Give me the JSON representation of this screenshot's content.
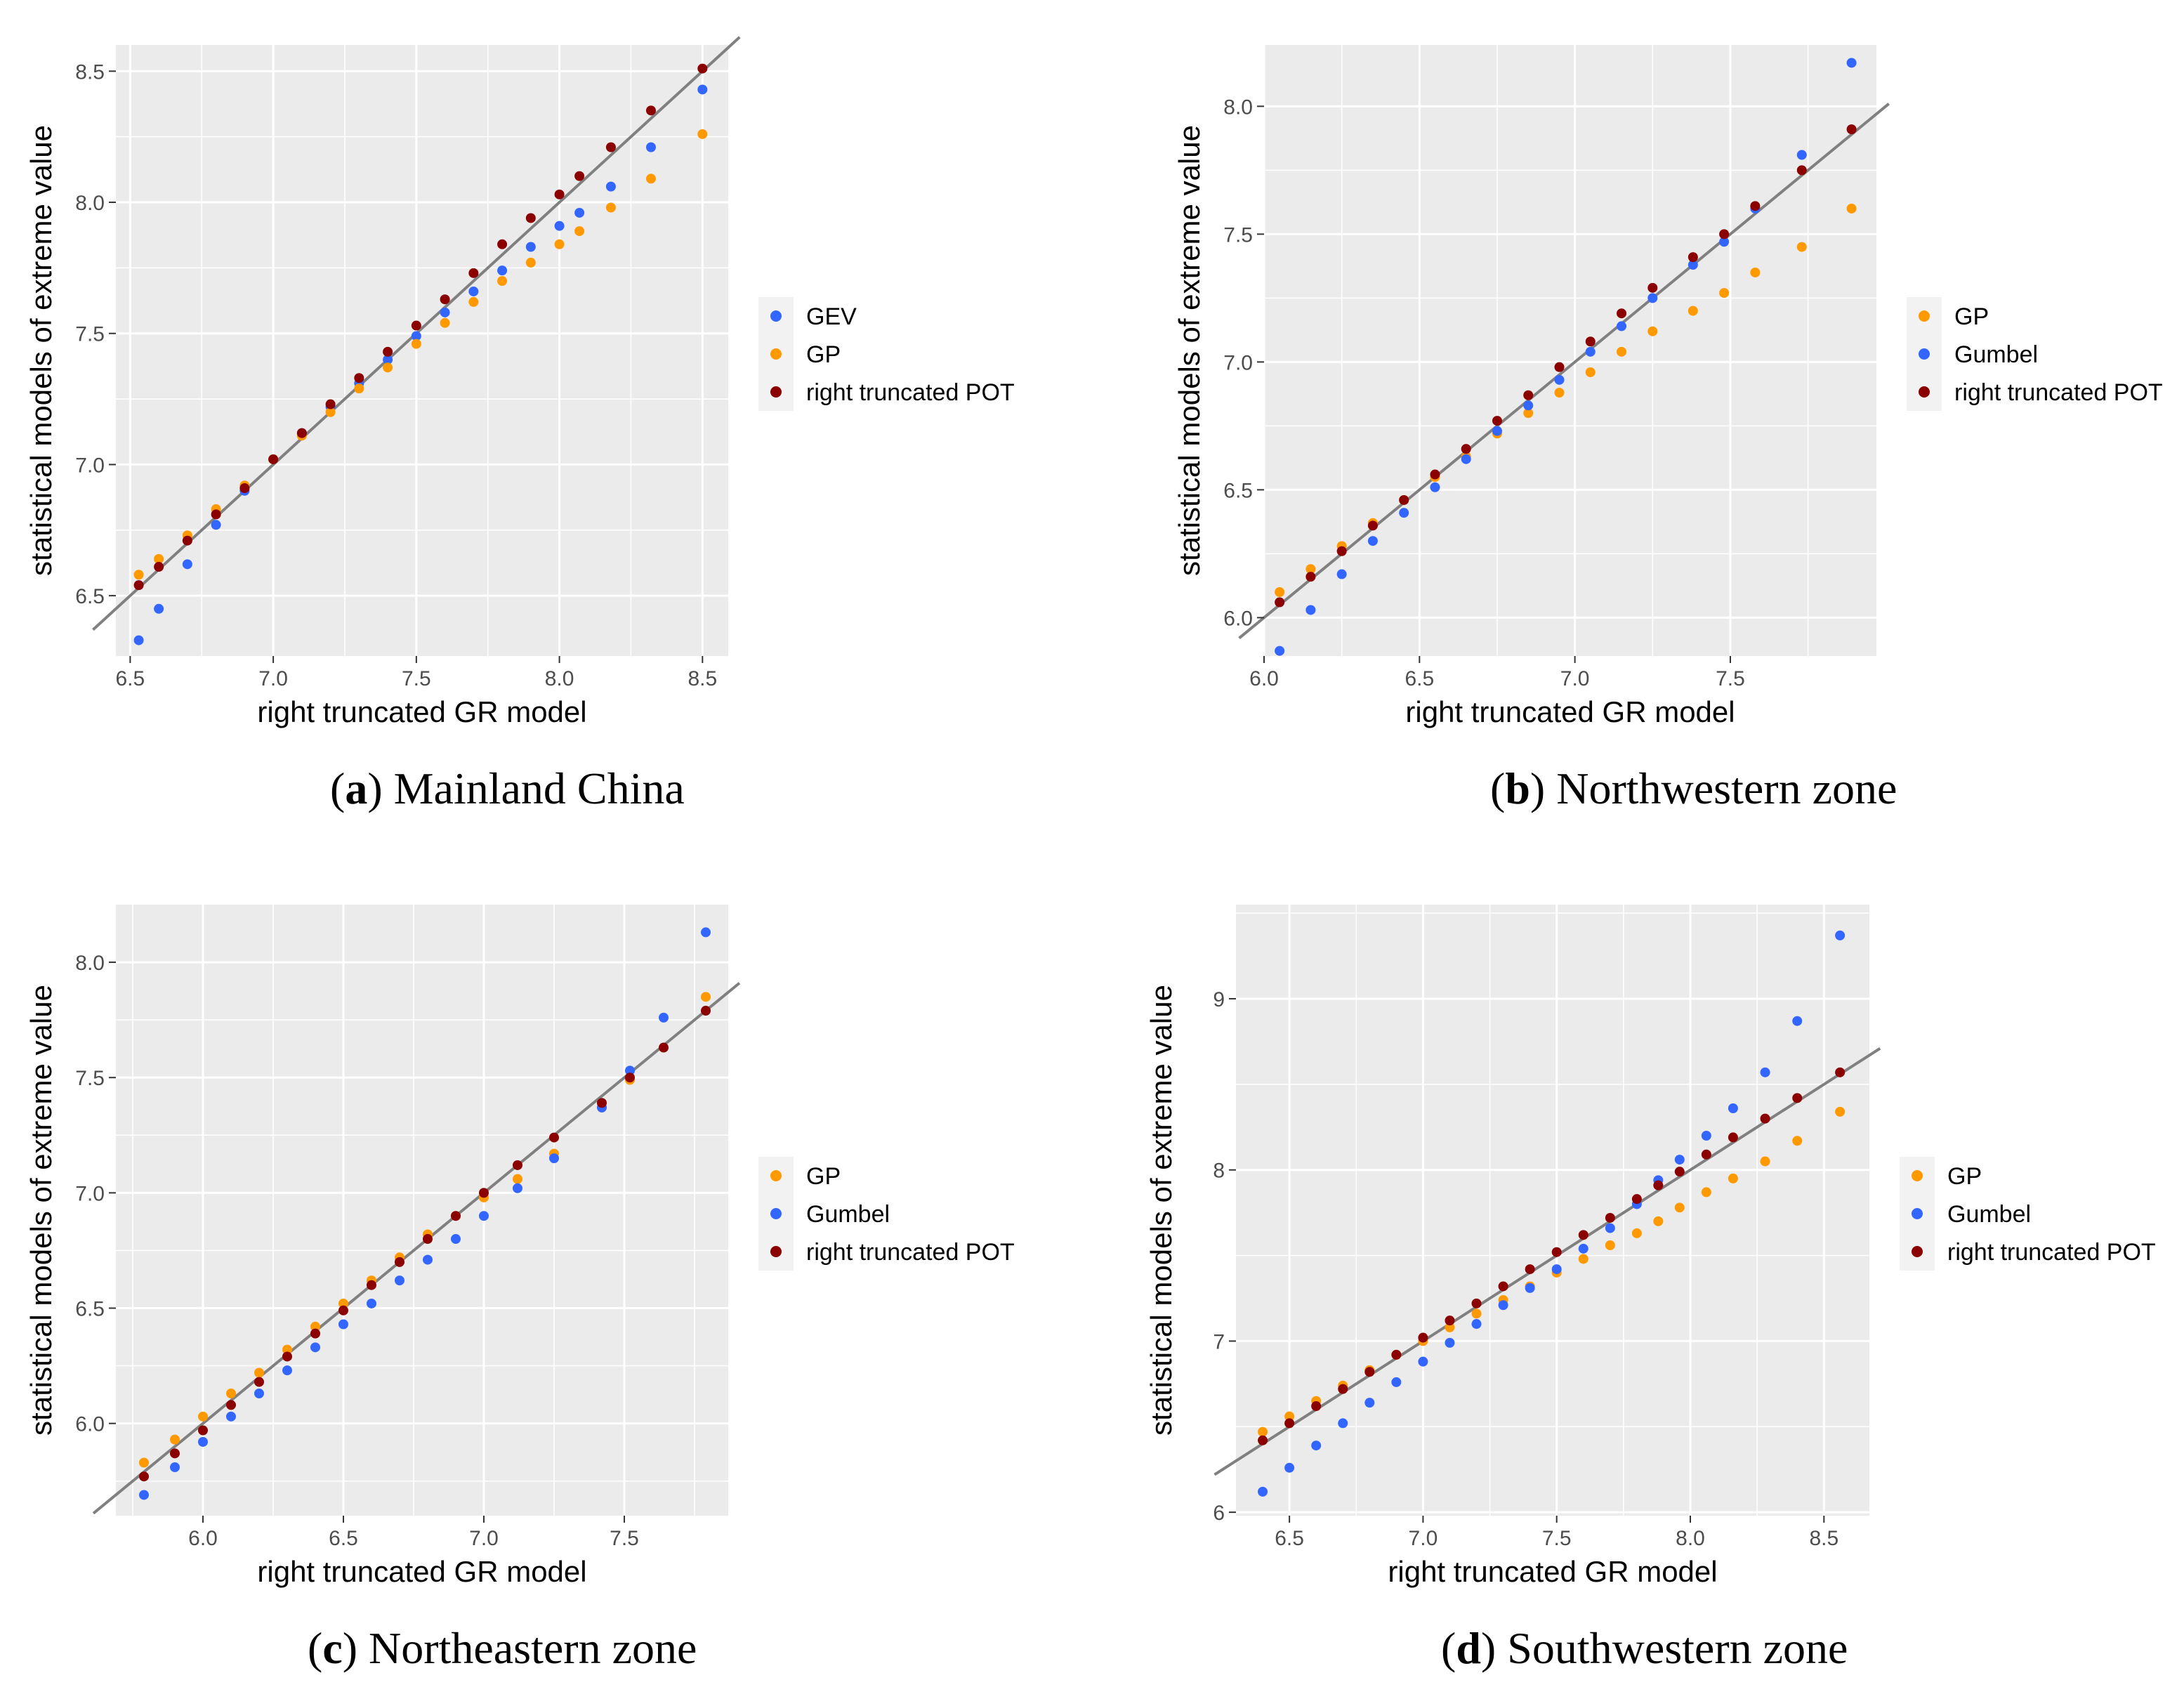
{
  "figure": {
    "colors": {
      "GEV": "#3366ff",
      "Gumbel": "#3366ff",
      "GP": "#ff9900",
      "right truncated POT": "#8b0000",
      "panel_bg": "#ebebeb",
      "grid": "#ffffff",
      "ref_line": "#808080"
    }
  },
  "chart_data": [
    {
      "type": "scatter",
      "panel_label": "a",
      "caption": "Mainland China",
      "xlabel": "right truncated GR model",
      "ylabel": "statistical models of extreme value",
      "xlim": [
        6.45,
        8.59
      ],
      "ylim": [
        6.27,
        8.6
      ],
      "xticks": [
        6.5,
        7.0,
        7.5,
        8.0,
        8.5
      ],
      "xtick_labels": [
        "6.5",
        "7.0",
        "7.5",
        "8.0",
        "8.5"
      ],
      "yticks": [
        6.5,
        7.0,
        7.5,
        8.0,
        8.5
      ],
      "ytick_labels": [
        "6.5",
        "7.0",
        "7.5",
        "8.0",
        "8.5"
      ],
      "reference_line": "y = x",
      "legend_position": "right",
      "series": [
        {
          "name": "GEV",
          "x": [
            6.53,
            6.6,
            6.7,
            6.8,
            6.9,
            7.0,
            7.1,
            7.2,
            7.3,
            7.4,
            7.5,
            7.6,
            7.7,
            7.8,
            7.9,
            8.0,
            8.07,
            8.18,
            8.32,
            8.5
          ],
          "y": [
            6.33,
            6.45,
            6.62,
            6.77,
            6.9,
            7.02,
            7.12,
            7.22,
            7.31,
            7.4,
            7.49,
            7.58,
            7.66,
            7.74,
            7.83,
            7.91,
            7.96,
            8.06,
            8.21,
            8.43
          ]
        },
        {
          "name": "GP",
          "x": [
            6.53,
            6.6,
            6.7,
            6.8,
            6.9,
            7.0,
            7.1,
            7.2,
            7.3,
            7.4,
            7.5,
            7.6,
            7.7,
            7.8,
            7.9,
            8.0,
            8.07,
            8.18,
            8.32,
            8.5
          ],
          "y": [
            6.58,
            6.64,
            6.73,
            6.83,
            6.92,
            7.02,
            7.11,
            7.2,
            7.29,
            7.37,
            7.46,
            7.54,
            7.62,
            7.7,
            7.77,
            7.84,
            7.89,
            7.98,
            8.09,
            8.26
          ]
        },
        {
          "name": "right truncated POT",
          "x": [
            6.53,
            6.6,
            6.7,
            6.8,
            6.9,
            7.0,
            7.1,
            7.2,
            7.3,
            7.4,
            7.5,
            7.6,
            7.7,
            7.8,
            7.9,
            8.0,
            8.07,
            8.18,
            8.32,
            8.5
          ],
          "y": [
            6.54,
            6.61,
            6.71,
            6.81,
            6.91,
            7.02,
            7.12,
            7.23,
            7.33,
            7.43,
            7.53,
            7.63,
            7.73,
            7.84,
            7.94,
            8.03,
            8.1,
            8.21,
            8.35,
            8.51
          ]
        }
      ]
    },
    {
      "type": "scatter",
      "panel_label": "b",
      "caption": "Northwestern zone",
      "xlabel": "right truncated GR model",
      "ylabel": "statistical models of extreme value",
      "xlim": [
        6.0,
        7.97
      ],
      "ylim": [
        5.85,
        8.24
      ],
      "xticks": [
        6.0,
        6.5,
        7.0,
        7.5
      ],
      "xtick_labels": [
        "6.0",
        "6.5",
        "7.0",
        "7.5"
      ],
      "yticks": [
        6.0,
        6.5,
        7.0,
        7.5,
        8.0
      ],
      "ytick_labels": [
        "6.0",
        "6.5",
        "7.0",
        "7.5",
        "8.0"
      ],
      "reference_line": "y = x",
      "legend_position": "right",
      "series": [
        {
          "name": "GP",
          "x": [
            6.05,
            6.15,
            6.25,
            6.35,
            6.45,
            6.55,
            6.65,
            6.75,
            6.85,
            6.95,
            7.05,
            7.15,
            7.25,
            7.38,
            7.48,
            7.58,
            7.73,
            7.89
          ],
          "y": [
            6.1,
            6.19,
            6.28,
            6.37,
            6.46,
            6.55,
            6.63,
            6.72,
            6.8,
            6.88,
            6.96,
            7.04,
            7.12,
            7.2,
            7.27,
            7.35,
            7.45,
            7.6
          ]
        },
        {
          "name": "Gumbel",
          "x": [
            6.05,
            6.15,
            6.25,
            6.35,
            6.45,
            6.55,
            6.65,
            6.75,
            6.85,
            6.95,
            7.05,
            7.15,
            7.25,
            7.38,
            7.48,
            7.58,
            7.73,
            7.89
          ],
          "y": [
            5.87,
            6.03,
            6.17,
            6.3,
            6.41,
            6.51,
            6.62,
            6.73,
            6.83,
            6.93,
            7.04,
            7.14,
            7.25,
            7.38,
            7.47,
            7.6,
            7.81,
            8.17
          ]
        },
        {
          "name": "right truncated POT",
          "x": [
            6.05,
            6.15,
            6.25,
            6.35,
            6.45,
            6.55,
            6.65,
            6.75,
            6.85,
            6.95,
            7.05,
            7.15,
            7.25,
            7.38,
            7.48,
            7.58,
            7.73,
            7.89
          ],
          "y": [
            6.06,
            6.16,
            6.26,
            6.36,
            6.46,
            6.56,
            6.66,
            6.77,
            6.87,
            6.98,
            7.08,
            7.19,
            7.29,
            7.41,
            7.5,
            7.61,
            7.75,
            7.91
          ]
        }
      ]
    },
    {
      "type": "scatter",
      "panel_label": "c",
      "caption": "Northeastern zone",
      "xlabel": "right truncated GR model",
      "ylabel": "statistical models of extreme value",
      "xlim": [
        5.69,
        7.87
      ],
      "ylim": [
        5.6,
        8.25
      ],
      "xticks": [
        6.0,
        6.5,
        7.0,
        7.5
      ],
      "xtick_labels": [
        "6.0",
        "6.5",
        "7.0",
        "7.5"
      ],
      "yticks": [
        6.0,
        6.5,
        7.0,
        7.5,
        8.0
      ],
      "ytick_labels": [
        "6.0",
        "6.5",
        "7.0",
        "7.5",
        "8.0"
      ],
      "reference_line": "y = x",
      "legend_position": "right",
      "series": [
        {
          "name": "GP",
          "x": [
            5.79,
            5.9,
            6.0,
            6.1,
            6.2,
            6.3,
            6.4,
            6.5,
            6.6,
            6.7,
            6.8,
            6.9,
            7.0,
            7.12,
            7.25,
            7.42,
            7.52,
            7.79
          ],
          "y": [
            5.83,
            5.93,
            6.03,
            6.13,
            6.22,
            6.32,
            6.42,
            6.52,
            6.62,
            6.72,
            6.82,
            6.9,
            6.98,
            7.06,
            7.17,
            7.37,
            7.49,
            7.85
          ]
        },
        {
          "name": "Gumbel",
          "x": [
            5.79,
            5.9,
            6.0,
            6.1,
            6.2,
            6.3,
            6.4,
            6.5,
            6.6,
            6.7,
            6.8,
            6.9,
            7.0,
            7.12,
            7.25,
            7.42,
            7.52,
            7.64,
            7.79
          ],
          "y": [
            5.69,
            5.81,
            5.92,
            6.03,
            6.13,
            6.23,
            6.33,
            6.43,
            6.52,
            6.62,
            6.71,
            6.8,
            6.9,
            7.02,
            7.15,
            7.37,
            7.53,
            7.76,
            8.13
          ]
        },
        {
          "name": "right truncated POT",
          "x": [
            5.79,
            5.9,
            6.0,
            6.1,
            6.2,
            6.3,
            6.4,
            6.5,
            6.6,
            6.7,
            6.8,
            6.9,
            7.0,
            7.12,
            7.25,
            7.42,
            7.52,
            7.64,
            7.79
          ],
          "y": [
            5.77,
            5.87,
            5.97,
            6.08,
            6.18,
            6.29,
            6.39,
            6.49,
            6.6,
            6.7,
            6.8,
            6.9,
            7.0,
            7.12,
            7.24,
            7.39,
            7.5,
            7.63,
            7.79
          ]
        }
      ]
    },
    {
      "type": "scatter",
      "panel_label": "d",
      "caption": "Southwestern zone",
      "xlabel": "right truncated GR model",
      "ylabel": "statistical models of extreme value",
      "xlim": [
        6.3,
        8.67
      ],
      "ylim": [
        5.98,
        9.55
      ],
      "xticks": [
        6.5,
        7.0,
        7.5,
        8.0,
        8.5
      ],
      "xtick_labels": [
        "6.5",
        "7.0",
        "7.5",
        "8.0",
        "8.5"
      ],
      "yticks": [
        6,
        7,
        8,
        9
      ],
      "ytick_labels": [
        "6",
        "7",
        "8",
        "9"
      ],
      "reference_line": "y = x",
      "legend_position": "right",
      "series": [
        {
          "name": "GP",
          "x": [
            6.4,
            6.5,
            6.6,
            6.7,
            6.8,
            6.9,
            7.0,
            7.1,
            7.2,
            7.3,
            7.4,
            7.5,
            7.6,
            7.7,
            7.8,
            7.88,
            7.96,
            8.06,
            8.16,
            8.28,
            8.4,
            8.56
          ],
          "y": [
            6.47,
            6.56,
            6.65,
            6.74,
            6.83,
            6.92,
            7.0,
            7.08,
            7.16,
            7.24,
            7.32,
            7.4,
            7.48,
            7.56,
            7.63,
            7.7,
            7.78,
            7.87,
            7.95,
            8.05,
            8.17,
            8.34
          ]
        },
        {
          "name": "Gumbel",
          "x": [
            6.4,
            6.5,
            6.6,
            6.7,
            6.8,
            6.9,
            7.0,
            7.1,
            7.2,
            7.3,
            7.4,
            7.5,
            7.6,
            7.7,
            7.8,
            7.88,
            7.96,
            8.06,
            8.16,
            8.28,
            8.4,
            8.56
          ],
          "y": [
            6.12,
            6.26,
            6.39,
            6.52,
            6.64,
            6.76,
            6.88,
            6.99,
            7.1,
            7.21,
            7.31,
            7.42,
            7.54,
            7.66,
            7.8,
            7.94,
            8.06,
            8.2,
            8.36,
            8.57,
            8.87,
            9.37
          ]
        },
        {
          "name": "right truncated POT",
          "x": [
            6.4,
            6.5,
            6.6,
            6.7,
            6.8,
            6.9,
            7.0,
            7.1,
            7.2,
            7.3,
            7.4,
            7.5,
            7.6,
            7.7,
            7.8,
            7.88,
            7.96,
            8.06,
            8.16,
            8.28,
            8.4,
            8.56
          ],
          "y": [
            6.42,
            6.52,
            6.62,
            6.72,
            6.82,
            6.92,
            7.02,
            7.12,
            7.22,
            7.32,
            7.42,
            7.52,
            7.62,
            7.72,
            7.83,
            7.91,
            7.99,
            8.09,
            8.19,
            8.3,
            8.42,
            8.57
          ]
        }
      ]
    }
  ]
}
